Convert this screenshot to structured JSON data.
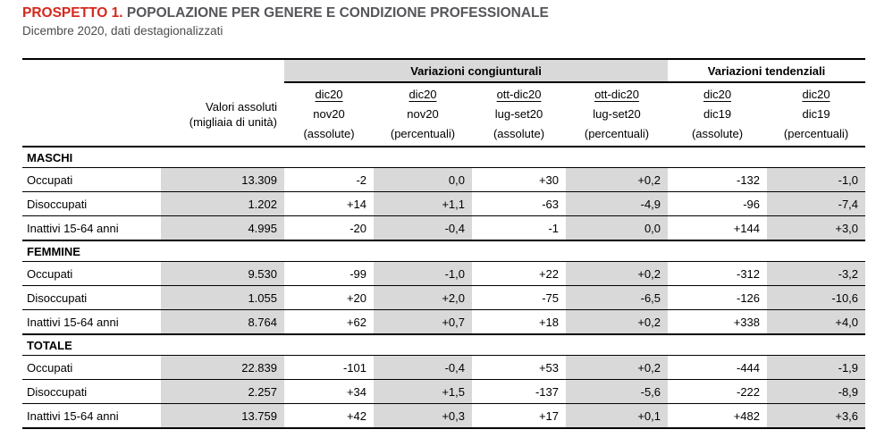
{
  "title": {
    "prefix": "PROSPETTO 1.",
    "text": " POPOLAZIONE PER GENERE E CONDIZIONE PROFESSIONALE",
    "subtitle": "Dicembre 2020, dati destagionalizzati"
  },
  "colors": {
    "accent_red": "#d5281c",
    "title_gray": "#55555a",
    "cell_gray": "#d9d9d9"
  },
  "table": {
    "group_headers": [
      {
        "label": "Variazioni congiunturali"
      },
      {
        "label": "Variazioni tendenziali"
      }
    ],
    "col_headers": {
      "valori_line1": "Valori assoluti",
      "valori_line2": "(migliaia di unità)",
      "cols": [
        {
          "top": "dic20",
          "bottom": "nov20",
          "unit": "(assolute)"
        },
        {
          "top": "dic20",
          "bottom": "nov20",
          "unit": "(percentuali)"
        },
        {
          "top": "ott-dic20",
          "bottom": "lug-set20",
          "unit": "(assolute)"
        },
        {
          "top": "ott-dic20",
          "bottom": "lug-set20",
          "unit": "(percentuali)"
        },
        {
          "top": "dic20",
          "bottom": "dic19",
          "unit": "(assolute)"
        },
        {
          "top": "dic20",
          "bottom": "dic19",
          "unit": "(percentuali)"
        }
      ]
    },
    "sections": [
      {
        "label": "MASCHI",
        "rows": [
          {
            "label": "Occupati",
            "values": [
              "13.309",
              "-2",
              "0,0",
              "+30",
              "+0,2",
              "-132",
              "-1,0"
            ]
          },
          {
            "label": "Disoccupati",
            "values": [
              "1.202",
              "+14",
              "+1,1",
              "-63",
              "-4,9",
              "-96",
              "-7,4"
            ]
          },
          {
            "label": "Inattivi 15-64 anni",
            "values": [
              "4.995",
              "-20",
              "-0,4",
              "-1",
              "0,0",
              "+144",
              "+3,0"
            ]
          }
        ]
      },
      {
        "label": "FEMMINE",
        "rows": [
          {
            "label": "Occupati",
            "values": [
              "9.530",
              "-99",
              "-1,0",
              "+22",
              "+0,2",
              "-312",
              "-3,2"
            ]
          },
          {
            "label": "Disoccupati",
            "values": [
              "1.055",
              "+20",
              "+2,0",
              "-75",
              "-6,5",
              "-126",
              "-10,6"
            ]
          },
          {
            "label": "Inattivi 15-64 anni",
            "values": [
              "8.764",
              "+62",
              "+0,7",
              "+18",
              "+0,2",
              "+338",
              "+4,0"
            ]
          }
        ]
      },
      {
        "label": "TOTALE",
        "rows": [
          {
            "label": "Occupati",
            "values": [
              "22.839",
              "-101",
              "-0,4",
              "+53",
              "+0,2",
              "-444",
              "-1,9"
            ]
          },
          {
            "label": "Disoccupati",
            "values": [
              "2.257",
              "+34",
              "+1,5",
              "-137",
              "-5,6",
              "-222",
              "-8,9"
            ]
          },
          {
            "label": "Inattivi 15-64 anni",
            "values": [
              "13.759",
              "+42",
              "+0,3",
              "+17",
              "+0,1",
              "+482",
              "+3,6"
            ]
          }
        ]
      }
    ]
  }
}
